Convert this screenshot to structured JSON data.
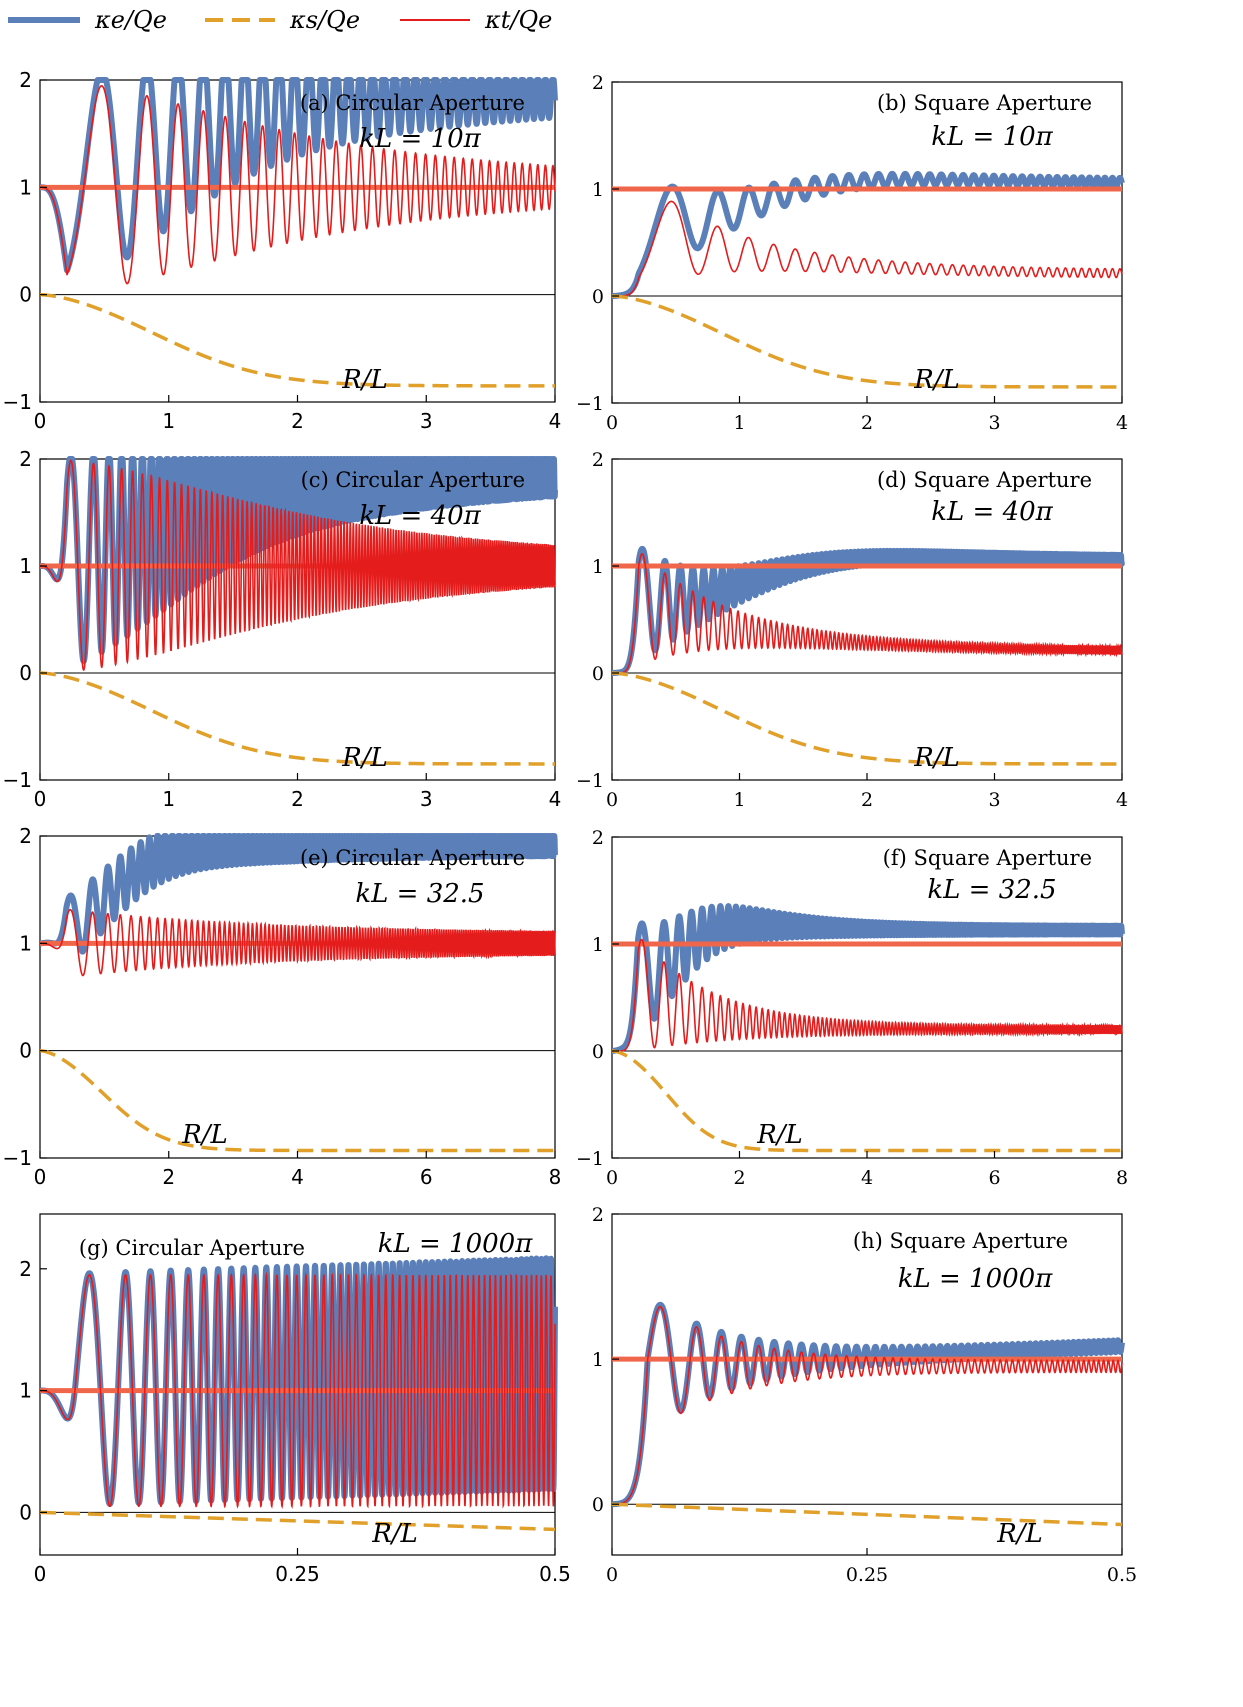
{
  "legend": [
    {
      "label": "κe/Qe",
      "color": "#5b7fb8",
      "style": "solid-thick"
    },
    {
      "label": "κs/Qe",
      "color": "#e0a02a",
      "style": "dashed"
    },
    {
      "label": "κt/Qe",
      "color": "#e41c1c",
      "style": "solid-thin"
    }
  ],
  "colors": {
    "kappa_e": "#5b7fb8",
    "kappa_s": "#e0a02a",
    "kappa_t": "#e41c1c",
    "unity": "#f0664a"
  },
  "chart_data": [
    {
      "id": "a",
      "type": "line",
      "title": "(a) Circular Aperture",
      "kl_label": "kL = 10π",
      "xlabel": "R/L",
      "xlim": [
        0,
        4
      ],
      "ylim": [
        -1,
        2
      ],
      "xticks": [
        "0",
        "1",
        "2",
        "3",
        "4"
      ],
      "yticks": [
        "−1",
        "0",
        "1",
        "2"
      ],
      "aperture": "circular",
      "kL": 31.416,
      "tick_font": "sans",
      "series": [
        {
          "name": "κe/Qe"
        },
        {
          "name": "κs/Qe"
        },
        {
          "name": "κt/Qe"
        }
      ]
    },
    {
      "id": "b",
      "type": "line",
      "title": "(b) Square Aperture",
      "kl_label": "kL = 10π",
      "xlabel": "R/L",
      "xlim": [
        0,
        4
      ],
      "ylim": [
        -1,
        2
      ],
      "xticks": [
        "0",
        "1",
        "2",
        "3",
        "4"
      ],
      "yticks": [
        "−1",
        "0",
        "1",
        "2"
      ],
      "aperture": "square",
      "kL": 31.416,
      "tick_font": "serif",
      "series": [
        {
          "name": "κe/Qe"
        },
        {
          "name": "κs/Qe"
        },
        {
          "name": "κt/Qe"
        }
      ]
    },
    {
      "id": "c",
      "type": "line",
      "title": "(c) Circular Aperture",
      "kl_label": "kL = 40π",
      "xlabel": "R/L",
      "xlim": [
        0,
        4
      ],
      "ylim": [
        -1,
        2
      ],
      "xticks": [
        "0",
        "1",
        "2",
        "3",
        "4"
      ],
      "yticks": [
        "−1",
        "0",
        "1",
        "2"
      ],
      "aperture": "circular",
      "kL": 125.66,
      "tick_font": "sans",
      "series": [
        {
          "name": "κe/Qe"
        },
        {
          "name": "κs/Qe"
        },
        {
          "name": "κt/Qe"
        }
      ]
    },
    {
      "id": "d",
      "type": "line",
      "title": "(d) Square Aperture",
      "kl_label": "kL = 40π",
      "xlabel": "R/L",
      "xlim": [
        0,
        4
      ],
      "ylim": [
        -1,
        2
      ],
      "xticks": [
        "0",
        "1",
        "2",
        "3",
        "4"
      ],
      "yticks": [
        "−1",
        "0",
        "1",
        "2"
      ],
      "aperture": "square",
      "kL": 125.66,
      "tick_font": "serif",
      "series": [
        {
          "name": "κe/Qe"
        },
        {
          "name": "κs/Qe"
        },
        {
          "name": "κt/Qe"
        }
      ]
    },
    {
      "id": "e",
      "type": "line",
      "title": "(e) Circular Aperture",
      "kl_label": "kL = 32.5",
      "xlabel": "R/L",
      "xlim": [
        0,
        8
      ],
      "ylim": [
        -1,
        2
      ],
      "xticks": [
        "0",
        "2",
        "4",
        "6",
        "8"
      ],
      "yticks": [
        "−1",
        "0",
        "1",
        "2"
      ],
      "aperture": "circular",
      "kL": 32.5,
      "tick_font": "sans",
      "series": [
        {
          "name": "κe/Qe"
        },
        {
          "name": "κs/Qe"
        },
        {
          "name": "κt/Qe"
        }
      ]
    },
    {
      "id": "f",
      "type": "line",
      "title": "(f) Square Aperture",
      "kl_label": "kL = 32.5",
      "xlabel": "R/L",
      "xlim": [
        0,
        8
      ],
      "ylim": [
        -1,
        2
      ],
      "xticks": [
        "0",
        "2",
        "4",
        "6",
        "8"
      ],
      "yticks": [
        "−1",
        "0",
        "1",
        "2"
      ],
      "aperture": "square",
      "kL": 32.5,
      "tick_font": "serif",
      "series": [
        {
          "name": "κe/Qe"
        },
        {
          "name": "κs/Qe"
        },
        {
          "name": "κt/Qe"
        }
      ]
    },
    {
      "id": "g",
      "type": "line",
      "title": "(g) Circular Aperture",
      "kl_label": "kL = 1000π",
      "xlabel": "R/L",
      "xlim": [
        0,
        0.5
      ],
      "ylim": [
        -0.35,
        2.45
      ],
      "xticks": [
        "0",
        "0.25",
        "0.5"
      ],
      "yticks": [
        "0",
        "1",
        "2"
      ],
      "aperture": "circular",
      "kL": 3141.6,
      "tick_font": "sans",
      "series": [
        {
          "name": "κe/Qe"
        },
        {
          "name": "κs/Qe"
        },
        {
          "name": "κt/Qe"
        }
      ]
    },
    {
      "id": "h",
      "type": "line",
      "title": "(h) Square Aperture",
      "kl_label": "kL = 1000π",
      "xlabel": "R/L",
      "xlim": [
        0,
        0.5
      ],
      "ylim": [
        -0.35,
        2.0
      ],
      "xticks": [
        "0",
        "0.25",
        "0.5"
      ],
      "yticks": [
        "0",
        "1",
        "2"
      ],
      "aperture": "square",
      "kL": 3141.6,
      "tick_font": "serif",
      "series": [
        {
          "name": "κe/Qe"
        },
        {
          "name": "κs/Qe"
        },
        {
          "name": "κt/Qe"
        }
      ]
    }
  ]
}
